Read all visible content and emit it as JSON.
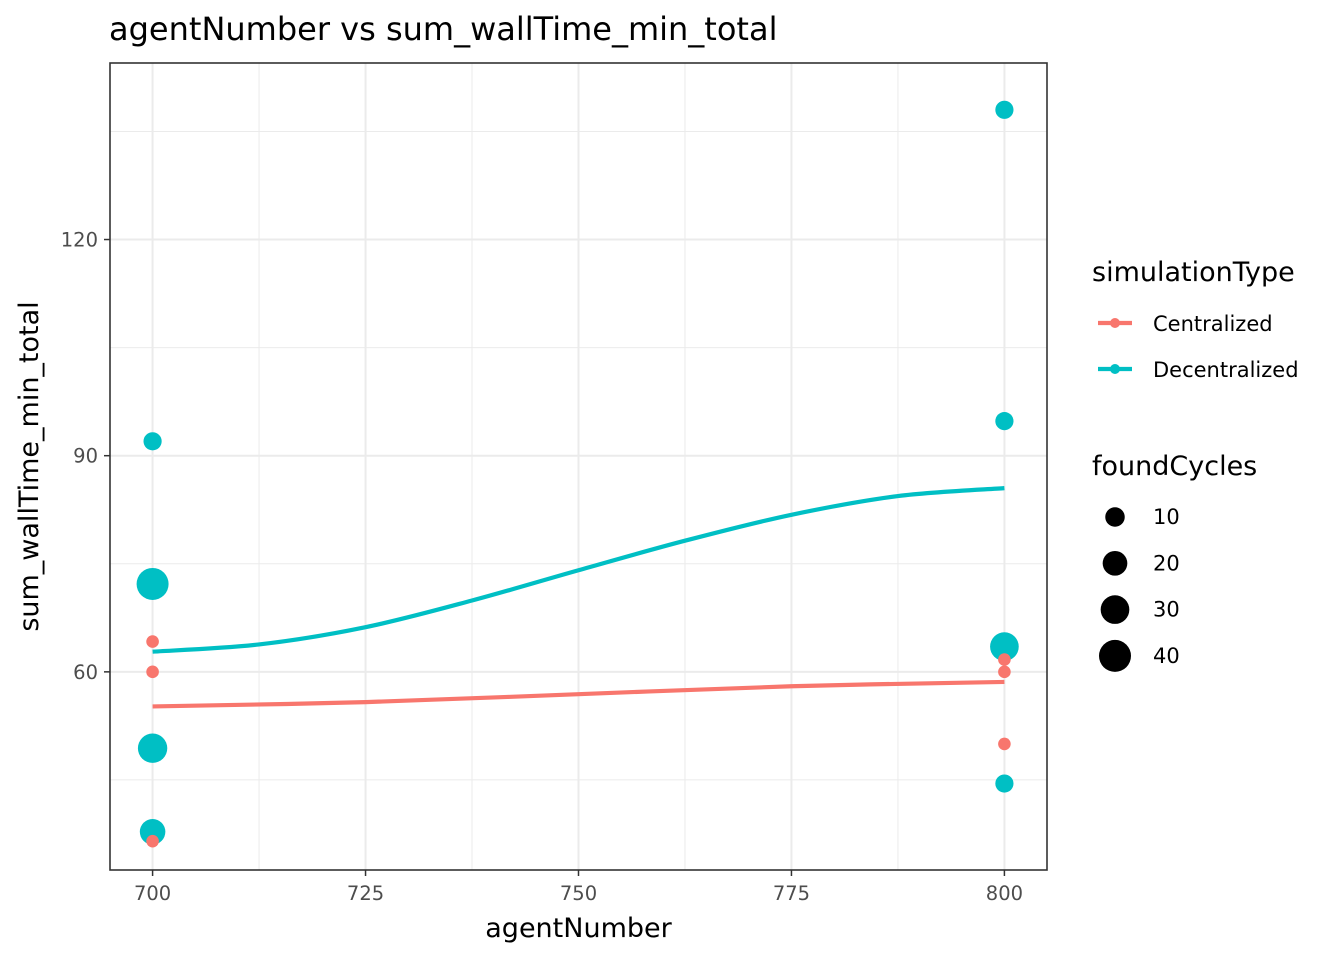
{
  "chart_data": {
    "type": "scatter",
    "title": "agentNumber  vs  sum_wallTime_min_total",
    "xlabel": "agentNumber",
    "ylabel": "sum_wallTime_min_total",
    "xlim": [
      695,
      805
    ],
    "ylim": [
      32.5,
      144.5
    ],
    "x_ticks": [
      700,
      725,
      750,
      775,
      800
    ],
    "y_ticks": [
      60,
      90,
      120
    ],
    "grid": true,
    "colors": {
      "Centralized": "#F8766D",
      "Decentralized": "#00BFC4"
    },
    "series": [
      {
        "name": "Centralized",
        "color": "#F8766D",
        "points": [
          {
            "x": 700,
            "y": 64.2,
            "foundCycles": 2
          },
          {
            "x": 700,
            "y": 60.0,
            "foundCycles": 2
          },
          {
            "x": 700,
            "y": 36.5,
            "foundCycles": 2
          },
          {
            "x": 800,
            "y": 61.7,
            "foundCycles": 2
          },
          {
            "x": 800,
            "y": 60.0,
            "foundCycles": 2
          },
          {
            "x": 800,
            "y": 50.0,
            "foundCycles": 2
          }
        ],
        "smooth": [
          [
            700,
            55.2
          ],
          [
            725,
            55.8
          ],
          [
            750,
            56.9
          ],
          [
            775,
            58.0
          ],
          [
            800,
            58.6
          ]
        ]
      },
      {
        "name": "Decentralized",
        "color": "#00BFC4",
        "points": [
          {
            "x": 700,
            "y": 92.0,
            "foundCycles": 8
          },
          {
            "x": 700,
            "y": 72.2,
            "foundCycles": 40
          },
          {
            "x": 700,
            "y": 49.4,
            "foundCycles": 32
          },
          {
            "x": 700,
            "y": 37.8,
            "foundCycles": 22
          },
          {
            "x": 800,
            "y": 138.0,
            "foundCycles": 8
          },
          {
            "x": 800,
            "y": 94.8,
            "foundCycles": 8
          },
          {
            "x": 800,
            "y": 63.5,
            "foundCycles": 30
          },
          {
            "x": 800,
            "y": 44.5,
            "foundCycles": 8
          }
        ],
        "smooth": [
          [
            700,
            62.8
          ],
          [
            712.5,
            63.8
          ],
          [
            725,
            66.2
          ],
          [
            737.5,
            69.9
          ],
          [
            750,
            74.1
          ],
          [
            762.5,
            78.2
          ],
          [
            775,
            81.8
          ],
          [
            787.5,
            84.4
          ],
          [
            800,
            85.5
          ]
        ]
      }
    ],
    "size_legend": {
      "title": "foundCycles",
      "values": [
        10,
        20,
        30,
        40
      ]
    },
    "color_legend": {
      "title": "simulationType",
      "items": [
        "Centralized",
        "Decentralized"
      ]
    },
    "legend_position": "right"
  }
}
